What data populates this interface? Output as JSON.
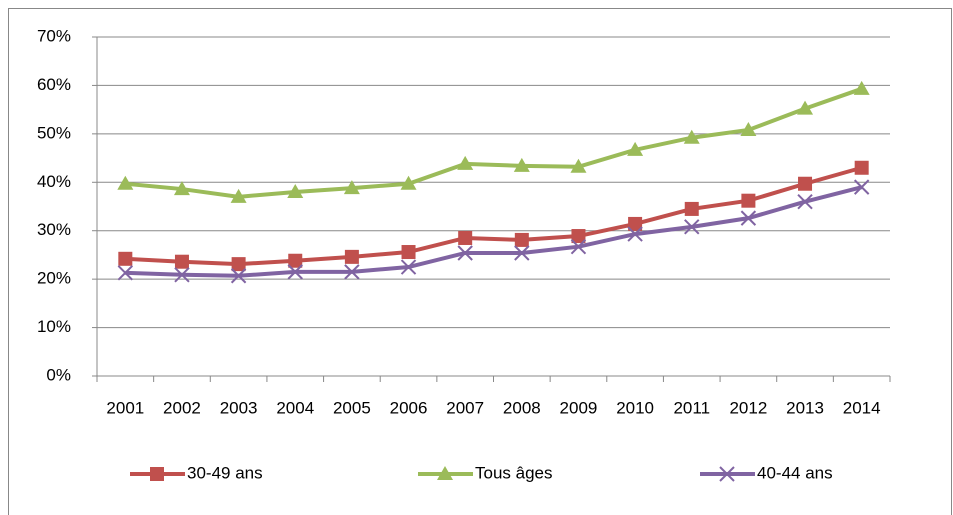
{
  "chart_data": {
    "type": "line",
    "categories": [
      "2001",
      "2002",
      "2003",
      "2004",
      "2005",
      "2006",
      "2007",
      "2008",
      "2009",
      "2010",
      "2011",
      "2012",
      "2013",
      "2014"
    ],
    "series": [
      {
        "name": "30-49 ans",
        "color": "#c0504d",
        "marker": "square",
        "values": [
          24.2,
          23.6,
          23.1,
          23.8,
          24.6,
          25.6,
          28.5,
          28.1,
          28.9,
          31.4,
          34.5,
          36.2,
          39.7,
          43.0
        ]
      },
      {
        "name": "Tous âges",
        "color": "#9bbb59",
        "marker": "triangle",
        "values": [
          39.7,
          38.6,
          37.0,
          38.0,
          38.8,
          39.7,
          43.8,
          43.4,
          43.2,
          46.7,
          49.2,
          50.8,
          55.2,
          59.3
        ]
      },
      {
        "name": "40-44 ans",
        "color": "#8064a2",
        "marker": "x",
        "values": [
          21.3,
          20.9,
          20.7,
          21.5,
          21.5,
          22.5,
          25.4,
          25.4,
          26.7,
          29.3,
          30.8,
          32.6,
          36.0,
          39.0
        ]
      }
    ],
    "ylim": [
      0,
      70
    ],
    "yticks": [
      {
        "value": 0,
        "label": "0%"
      },
      {
        "value": 10,
        "label": "10%"
      },
      {
        "value": 20,
        "label": "20%"
      },
      {
        "value": 30,
        "label": "30%"
      },
      {
        "value": 40,
        "label": "40%"
      },
      {
        "value": 50,
        "label": "50%"
      },
      {
        "value": 60,
        "label": "60%"
      },
      {
        "value": 70,
        "label": "70%"
      }
    ],
    "grid": true,
    "legend": "bottom"
  }
}
